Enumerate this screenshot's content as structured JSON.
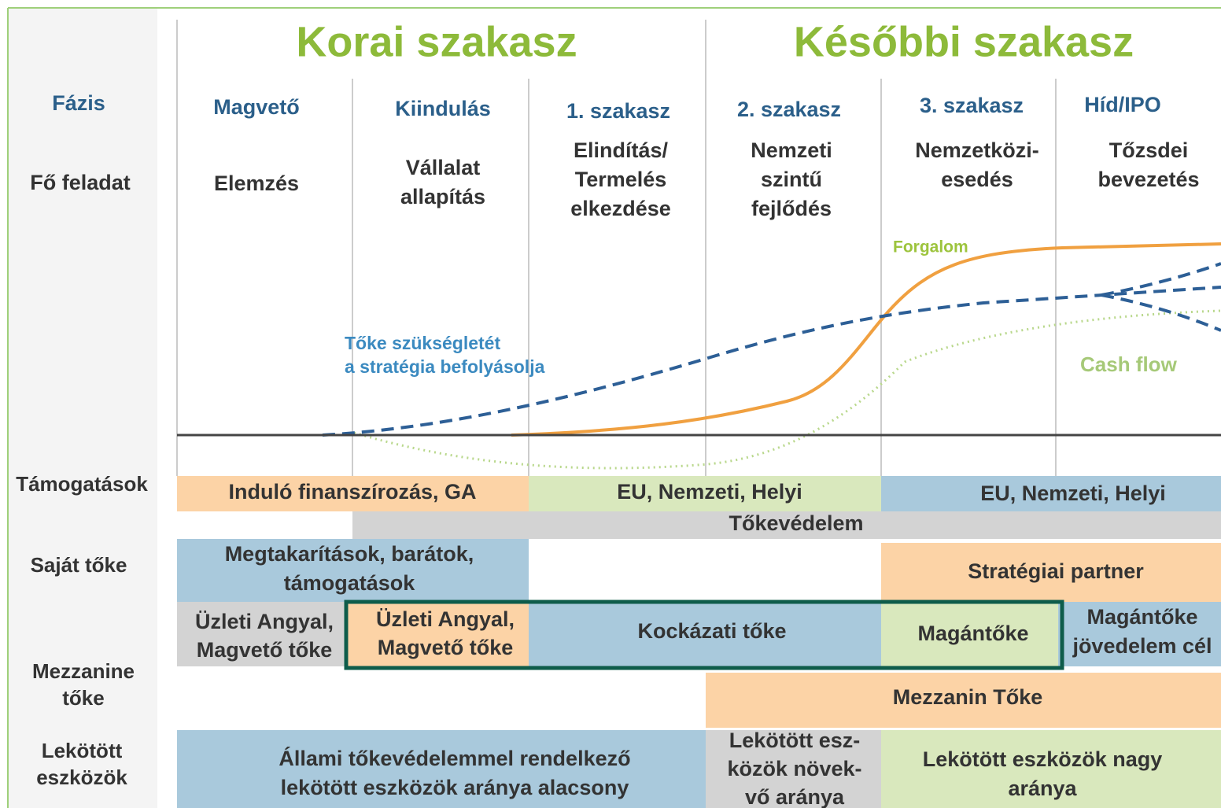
{
  "header": {
    "early": "Korai szakasz",
    "late": "Későbbi szakasz"
  },
  "row_labels": {
    "phase": "Fázis",
    "task": "Fő feladat",
    "grants": "Támogatások",
    "equity": "Saját tőke",
    "mezzanine": [
      "Mezzanine",
      "tőke"
    ],
    "fixed_assets": [
      "Lekötött",
      "eszközök"
    ]
  },
  "stages": [
    {
      "name": "Magvető",
      "task": [
        "Elemzés"
      ]
    },
    {
      "name": "Kiindulás",
      "task": [
        "Vállalat",
        "allapítás"
      ]
    },
    {
      "name": "1. szakasz",
      "task": [
        "Elindítás/",
        "Termelés",
        "elkezdése"
      ]
    },
    {
      "name": "2. szakasz",
      "task": [
        "Nemzeti",
        "szintű",
        "fejlődés"
      ]
    },
    {
      "name": "3. szakasz",
      "task": [
        "Nemzetközi-",
        "esedés"
      ]
    },
    {
      "name": "Híd/IPO",
      "task": [
        "Tőzsdei",
        "bevezetés"
      ]
    }
  ],
  "curves": {
    "revenue": "Forgalom",
    "capital_need": [
      "Tőke szükségletét",
      "a stratégia befolyásolja"
    ],
    "cash_flow": "Cash flow"
  },
  "bands": {
    "grants_early": [
      "Induló finanszírozás, GA"
    ],
    "grants_mid": [
      "EU, Nemzeti, Helyi"
    ],
    "grants_late": [
      "EU, Nemzeti, Helyi"
    ],
    "capital_protection": [
      "Tőkevédelem"
    ],
    "savings": [
      "Megtakarítások, barátok,",
      "támogatások"
    ],
    "strategic_partner": [
      "Stratégiai partner"
    ],
    "angel_seed": [
      "Üzleti Angyal,",
      "Magvető tőke"
    ],
    "angel_seed_highlight": [
      "Üzleti Angyal,",
      "Magvető tőke"
    ],
    "venture_capital": [
      "Kockázati tőke"
    ],
    "private_equity": [
      "Magántőke"
    ],
    "private_equity_income": [
      "Magántőke",
      "jövedelem cél"
    ],
    "mezzanine": [
      "Mezzanin Tőke"
    ],
    "fixed_low": [
      "Állami tőkevédelemmel rendelkező",
      "lekötött eszközök aránya alacsony"
    ],
    "fixed_growing": [
      "Lekötött esz-",
      "közök növek-",
      "vő aránya"
    ],
    "fixed_high": [
      "Lekötött eszközök nagy",
      "aránya"
    ]
  }
}
